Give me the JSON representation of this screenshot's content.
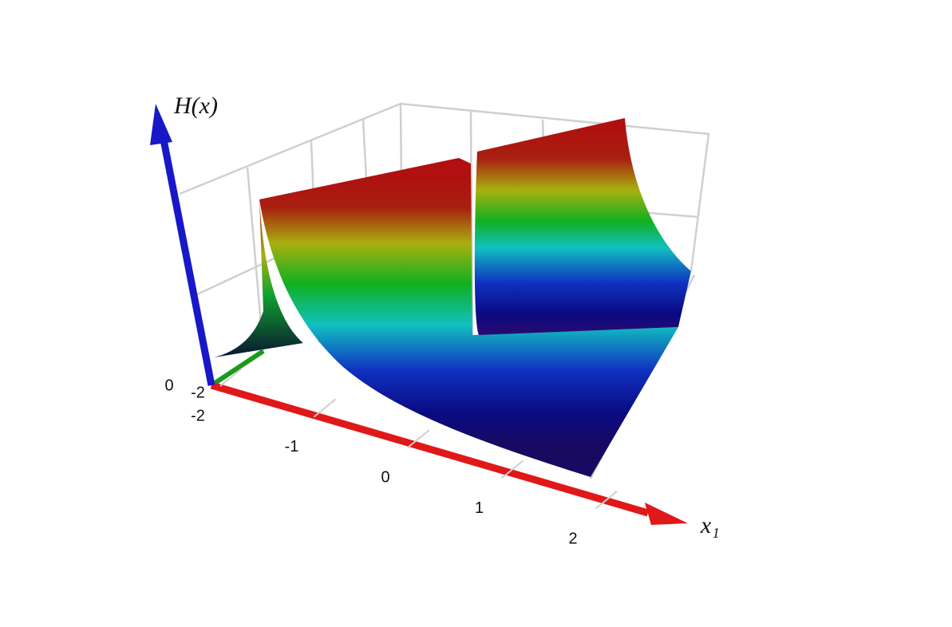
{
  "chart_data": {
    "type": "surface3d",
    "zlabel": "H(x)",
    "xlabel": "x₁",
    "xlim": [
      -2,
      2
    ],
    "xticks": [
      -2,
      -1,
      0,
      1,
      2
    ],
    "ylim": [
      -2,
      2
    ],
    "yticks": [
      -2
    ],
    "zticks": [
      0
    ]
  }
}
